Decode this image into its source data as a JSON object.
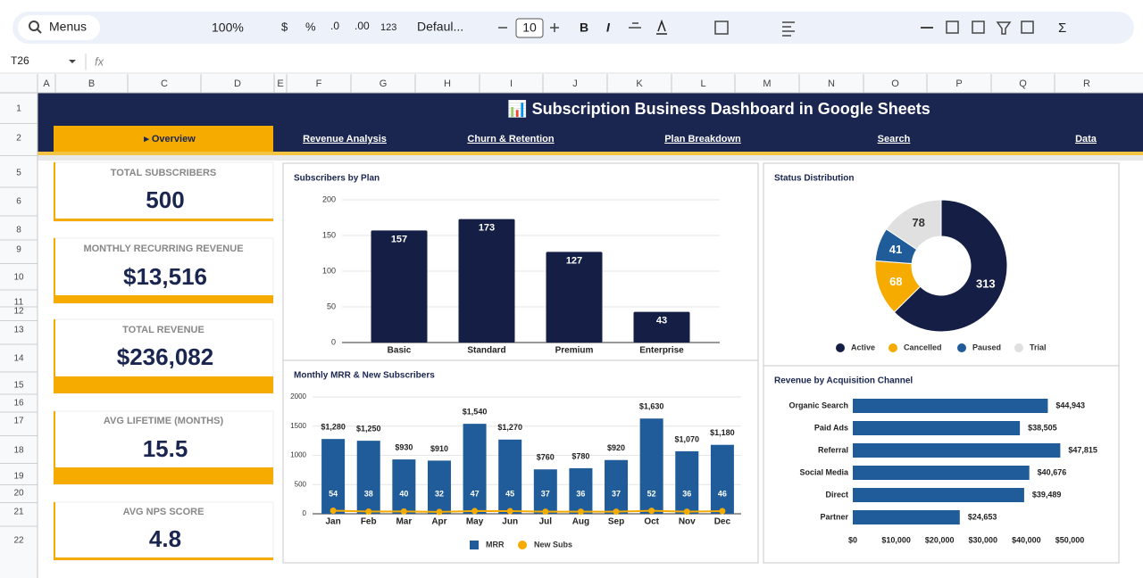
{
  "toolbar": {
    "search": "Menus",
    "zoom": "100%",
    "currency": "$",
    "percent": "%",
    "decrease_decimals": ".0",
    "increase_decimals": ".00",
    "number_format": "123",
    "font": "Defaul...",
    "font_size": "10",
    "bold": "B",
    "italic": "I",
    "functions": "Σ"
  },
  "formula_bar": {
    "cell": "T26",
    "fx": "fx"
  },
  "columns": [
    "A",
    "B",
    "C",
    "D",
    "E",
    "F",
    "G",
    "H",
    "I",
    "J",
    "K",
    "L",
    "M",
    "N",
    "O",
    "P",
    "Q",
    "R"
  ],
  "rows": [
    "1",
    "2",
    "5",
    "6",
    "8",
    "9",
    "10",
    "11",
    "12",
    "13",
    "14",
    "15",
    "16",
    "17",
    "18",
    "19",
    "20",
    "21",
    "22"
  ],
  "dashboard": {
    "title": "📊 Subscription Business Dashboard in Google Sheets",
    "nav": [
      "▸ Overview",
      "Revenue Analysis",
      "Churn & Retention",
      "Plan Breakdown",
      "Search",
      "Data"
    ],
    "kpis": [
      {
        "label": "TOTAL SUBSCRIBERS",
        "value": "500"
      },
      {
        "label": "MONTHLY RECURRING REVENUE",
        "value": "$13,516"
      },
      {
        "label": "TOTAL REVENUE",
        "value": "$236,082"
      },
      {
        "label": "AVG LIFETIME (MONTHS)",
        "value": "15.5"
      },
      {
        "label": "AVG NPS SCORE",
        "value": "4.8"
      }
    ]
  },
  "chart_data": [
    {
      "type": "bar",
      "title": "Subscribers by Plan",
      "categories": [
        "Basic",
        "Standard",
        "Premium",
        "Enterprise"
      ],
      "values": [
        157,
        173,
        127,
        43
      ],
      "color": "#151f45",
      "ylim": [
        0,
        200
      ],
      "yticks": [
        0,
        50,
        100,
        150,
        200
      ],
      "grid": true
    },
    {
      "type": "donut",
      "title": "Status Distribution",
      "categories": [
        "Active",
        "Cancelled",
        "Paused",
        "Trial"
      ],
      "values": [
        313,
        68,
        41,
        78
      ],
      "colors": [
        "#151f45",
        "#f5ab00",
        "#1f5c99",
        "#e0e0e0"
      ],
      "legend": "bottom"
    },
    {
      "type": "combo",
      "title": "Monthly MRR & New Subscribers",
      "categories": [
        "Jan",
        "Feb",
        "Mar",
        "Apr",
        "May",
        "Jun",
        "Jul",
        "Aug",
        "Sep",
        "Oct",
        "Nov",
        "Dec"
      ],
      "series": [
        {
          "name": "MRR",
          "type": "bar",
          "color": "#1f5c99",
          "values": [
            1280,
            1250,
            930,
            910,
            1540,
            1270,
            760,
            780,
            920,
            1630,
            1070,
            1180
          ],
          "value_labels": [
            "$1,280",
            "$1,250",
            "$930",
            "$910",
            "$1,540",
            "$1,270",
            "$760",
            "$780",
            "$920",
            "$1,630",
            "$1,070",
            "$1,180"
          ]
        },
        {
          "name": "New Subs",
          "type": "line",
          "color": "#f5ab00",
          "values": [
            54,
            38,
            40,
            32,
            47,
            45,
            37,
            36,
            37,
            52,
            36,
            46
          ]
        }
      ],
      "ylim": [
        0,
        2000
      ],
      "yticks": [
        0,
        500,
        1000,
        1500,
        2000
      ],
      "grid": true,
      "legend": "bottom"
    },
    {
      "type": "hbar",
      "title": "Revenue by Acquisition Channel",
      "categories": [
        "Organic Search",
        "Paid Ads",
        "Referral",
        "Social Media",
        "Direct",
        "Partner"
      ],
      "values": [
        44943,
        38505,
        47815,
        40676,
        39489,
        24653
      ],
      "value_labels": [
        "$44,943",
        "$38,505",
        "$47,815",
        "$40,676",
        "$39,489",
        "$24,653"
      ],
      "color": "#1f5c99",
      "xlim": [
        0,
        50000
      ],
      "xticks": [
        {
          "value": 0,
          "label": "$0"
        },
        {
          "value": 10000,
          "label": "$10,000"
        },
        {
          "value": 20000,
          "label": "$20,000"
        },
        {
          "value": 30000,
          "label": "$30,000"
        },
        {
          "value": 40000,
          "label": "$40,000"
        },
        {
          "value": 50000,
          "label": "$50,000"
        }
      ],
      "grid": false
    }
  ]
}
